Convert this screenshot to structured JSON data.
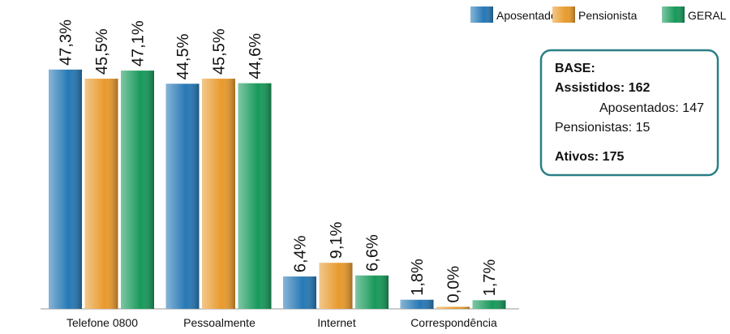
{
  "chart_data": {
    "type": "bar",
    "categories": [
      "Telefone 0800",
      "Pessoalmente",
      "Internet",
      "Correspondência"
    ],
    "series": [
      {
        "name": "Aposentado",
        "color": "#2678b5",
        "values": [
          47.3,
          44.5,
          6.4,
          1.8
        ],
        "value_labels": [
          "47,3%",
          "44,5%",
          "6,4%",
          "1,8%"
        ]
      },
      {
        "name": "Pensionista",
        "color": "#e89a2c",
        "values": [
          45.5,
          45.5,
          9.1,
          0.0
        ],
        "value_labels": [
          "45,5%",
          "45,5%",
          "9,1%",
          "0,0%"
        ]
      },
      {
        "name": "GERAL",
        "color": "#17995a",
        "values": [
          47.1,
          44.6,
          6.6,
          1.7
        ],
        "value_labels": [
          "47,1%",
          "44,6%",
          "6,6%",
          "1,7%"
        ]
      }
    ],
    "legend": "top-right",
    "annotation": {
      "title": "BASE:",
      "lines": [
        "Assistidos: 162",
        "Aposentados: 147",
        "Pensionistas: 15",
        "Ativos: 175"
      ]
    }
  }
}
